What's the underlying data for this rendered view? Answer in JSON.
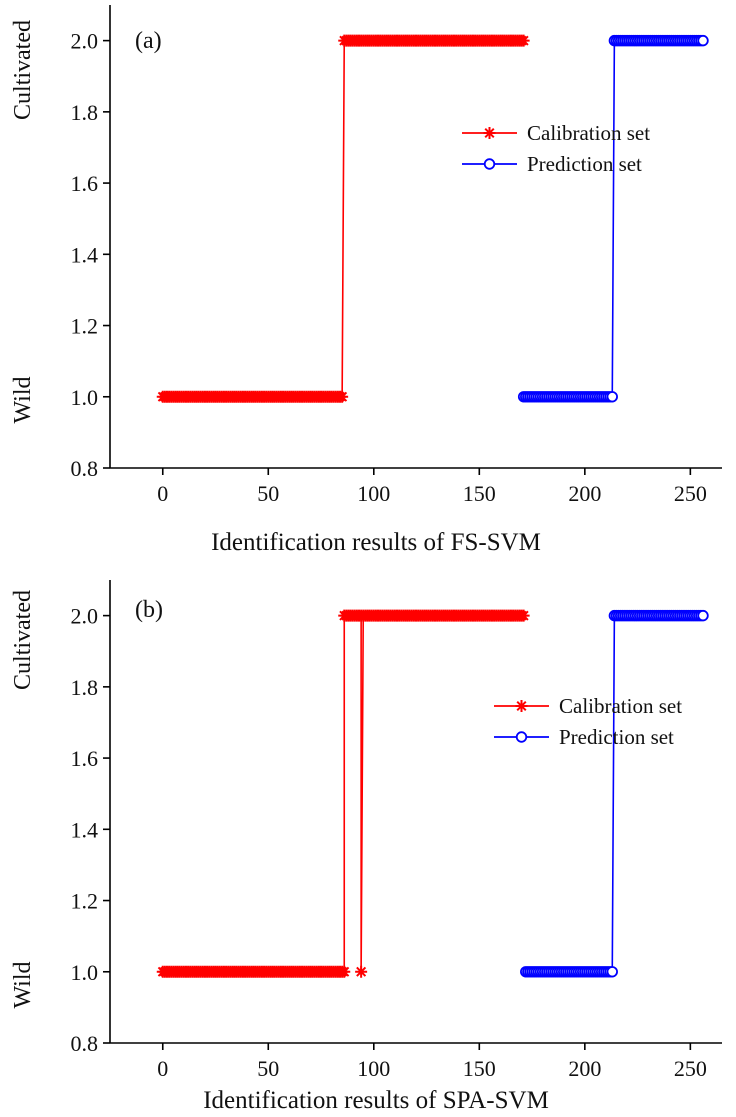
{
  "chart_data": [
    {
      "type": "line",
      "panel_label": "(a)",
      "xlabel": "Identification results of FS-SVM",
      "ylabel_top": "Cultivated",
      "ylabel_bottom": "Wild",
      "xlim": [
        -25,
        265
      ],
      "ylim": [
        0.8,
        2.1
      ],
      "xticks": [
        0,
        50,
        100,
        150,
        200,
        250
      ],
      "yticks": [
        0.8,
        1.0,
        1.2,
        1.4,
        1.6,
        1.8,
        2.0
      ],
      "ytick_labels": [
        "0.8",
        "1.0",
        "1.2",
        "1.4",
        "1.6",
        "1.8",
        "2.0"
      ],
      "legend_position": "right",
      "series": [
        {
          "name": "Calibration set",
          "color": "#ff0000",
          "marker": "asterisk",
          "segments": [
            {
              "x_start": 0,
              "x_end": 85,
              "y": 1.0
            },
            {
              "x_start": 86,
              "x_end": 171,
              "y": 2.0
            }
          ],
          "outliers": []
        },
        {
          "name": "Prediction set",
          "color": "#0000ff",
          "marker": "circle",
          "segments": [
            {
              "x_start": 171,
              "x_end": 213,
              "y": 1.0
            },
            {
              "x_start": 214,
              "x_end": 256,
              "y": 2.0
            }
          ],
          "outliers": []
        }
      ]
    },
    {
      "type": "line",
      "panel_label": "(b)",
      "xlabel": "Identification results of SPA-SVM",
      "ylabel_top": "Cultivated",
      "ylabel_bottom": "Wild",
      "xlim": [
        -25,
        265
      ],
      "ylim": [
        0.8,
        2.1
      ],
      "xticks": [
        0,
        50,
        100,
        150,
        200,
        250
      ],
      "yticks": [
        0.8,
        1.0,
        1.2,
        1.4,
        1.6,
        1.8,
        2.0
      ],
      "ytick_labels": [
        "0.8",
        "1.0",
        "1.2",
        "1.4",
        "1.6",
        "1.8",
        "2.0"
      ],
      "legend_position": "right",
      "series": [
        {
          "name": "Calibration set",
          "color": "#ff0000",
          "marker": "asterisk",
          "segments": [
            {
              "x_start": 0,
              "x_end": 86,
              "y": 1.0
            },
            {
              "x_start": 86,
              "x_end": 171,
              "y": 2.0
            }
          ],
          "outliers": [
            {
              "x": 94,
              "y": 1.0
            }
          ]
        },
        {
          "name": "Prediction set",
          "color": "#0000ff",
          "marker": "circle",
          "segments": [
            {
              "x_start": 172,
              "x_end": 213,
              "y": 1.0
            },
            {
              "x_start": 214,
              "x_end": 256,
              "y": 2.0
            }
          ],
          "outliers": []
        }
      ]
    }
  ]
}
